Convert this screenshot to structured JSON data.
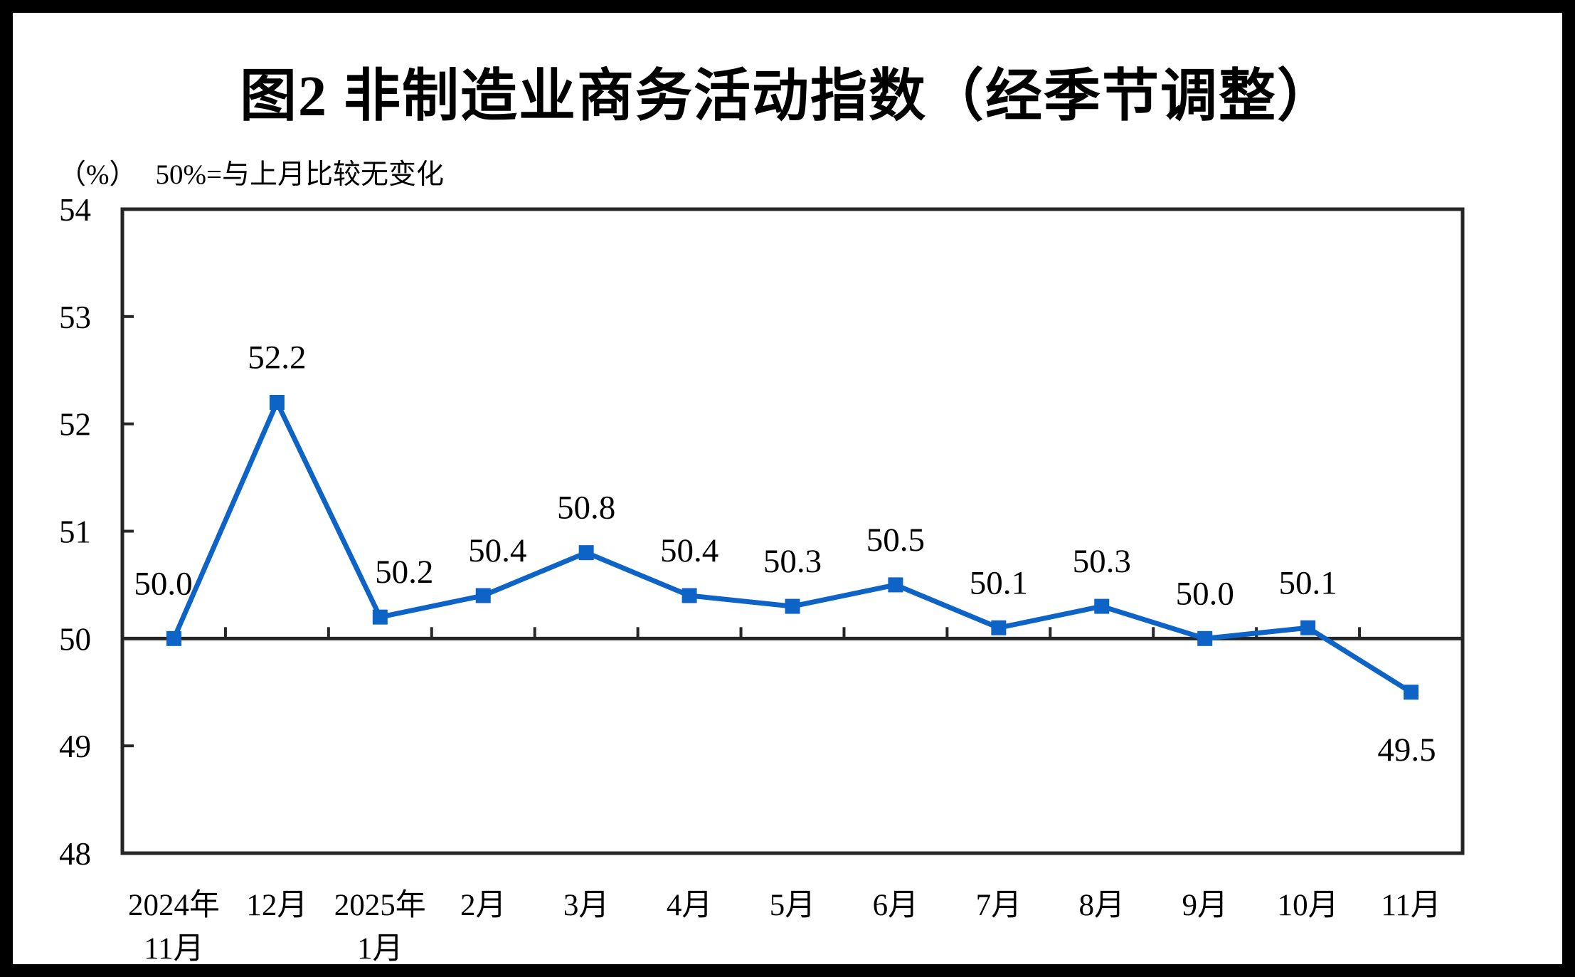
{
  "chart_data": {
    "type": "line",
    "title": "图2 非制造业商务活动指数（经季节调整）",
    "unit_label": "（%）",
    "reference_note": "50%=与上月比较无变化",
    "categories": [
      [
        "2024年",
        "11月"
      ],
      [
        "12月"
      ],
      [
        "2025年",
        "1月"
      ],
      [
        "2月"
      ],
      [
        "3月"
      ],
      [
        "4月"
      ],
      [
        "5月"
      ],
      [
        "6月"
      ],
      [
        "7月"
      ],
      [
        "8月"
      ],
      [
        "9月"
      ],
      [
        "10月"
      ],
      [
        "11月"
      ]
    ],
    "values": [
      50.0,
      52.2,
      50.2,
      50.4,
      50.8,
      50.4,
      50.3,
      50.5,
      50.1,
      50.3,
      50.0,
      50.1,
      49.5
    ],
    "point_labels": [
      "50.0",
      "52.2",
      "50.2",
      "50.4",
      "50.8",
      "50.4",
      "50.3",
      "50.5",
      "50.1",
      "50.3",
      "50.0",
      "50.1",
      "49.5"
    ],
    "ylim": [
      48,
      54
    ],
    "yticks": [
      48,
      49,
      50,
      51,
      52,
      53,
      54
    ],
    "axis_cross_at": 50,
    "grid": false,
    "legend": "none",
    "marker": "square",
    "colors": {
      "line": "#0d63c6",
      "axis": "#262626",
      "text": "#000000",
      "background": "#ffffff",
      "frame": "#000000"
    }
  }
}
